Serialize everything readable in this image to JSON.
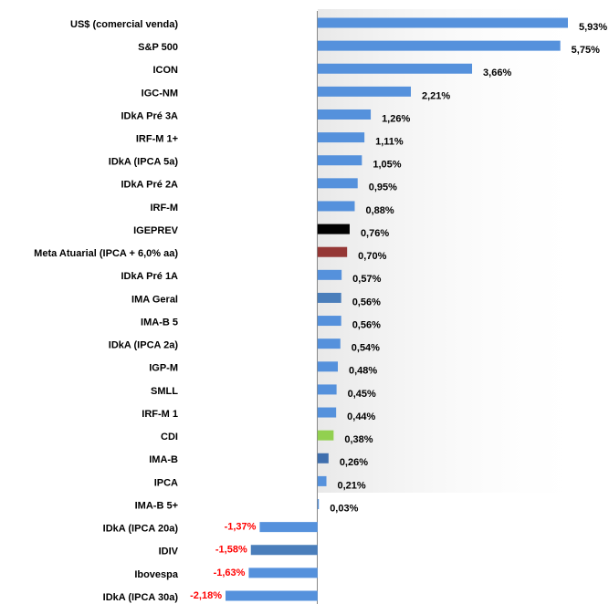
{
  "chart_data": {
    "type": "bar",
    "orientation": "horizontal",
    "categories": [
      "US$ (comercial venda)",
      "S&P 500",
      "ICON",
      "IGC-NM",
      "IDkA Pré 3A",
      "IRF-M 1+",
      "IDkA (IPCA 5a)",
      "IDkA Pré 2A",
      "IRF-M",
      "IGEPREV",
      "Meta Atuarial (IPCA + 6,0% aa)",
      "IDkA Pré 1A",
      "IMA Geral",
      "IMA-B 5",
      "IDkA (IPCA 2a)",
      "IGP-M",
      "SMLL",
      "IRF-M 1",
      "CDI",
      "IMA-B",
      "IPCA",
      "IMA-B 5+",
      "IDkA (IPCA 20a)",
      "IDIV",
      "Ibovespa",
      "IDkA (IPCA 30a)"
    ],
    "values": [
      5.93,
      5.75,
      3.66,
      2.21,
      1.26,
      1.11,
      1.05,
      0.95,
      0.88,
      0.76,
      0.7,
      0.57,
      0.56,
      0.56,
      0.54,
      0.48,
      0.45,
      0.44,
      0.38,
      0.26,
      0.21,
      0.03,
      -1.37,
      -1.58,
      -1.63,
      -2.18
    ],
    "value_labels": [
      "5,93%",
      "5,75%",
      "3,66%",
      "2,21%",
      "1,26%",
      "1,11%",
      "1,05%",
      "0,95%",
      "0,88%",
      "0,76%",
      "0,70%",
      "0,57%",
      "0,56%",
      "0,56%",
      "0,54%",
      "0,48%",
      "0,45%",
      "0,44%",
      "0,38%",
      "0,26%",
      "0,21%",
      "0,03%",
      "-1,37%",
      "-1,58%",
      "-1,63%",
      "-2,18%"
    ],
    "colors": [
      "#5591dc",
      "#5591dc",
      "#5591dc",
      "#5591dc",
      "#5591dc",
      "#5591dc",
      "#5591dc",
      "#5591dc",
      "#5591dc",
      "#000000",
      "#953735",
      "#5591dc",
      "#4a7ebb",
      "#5591dc",
      "#5591dc",
      "#5591dc",
      "#5591dc",
      "#5591dc",
      "#92d050",
      "#3f6fae",
      "#5591dc",
      "#5591dc",
      "#5591dc",
      "#4a7ebb",
      "#5591dc",
      "#5591dc"
    ],
    "negative_label_color": "#ff0000"
  }
}
